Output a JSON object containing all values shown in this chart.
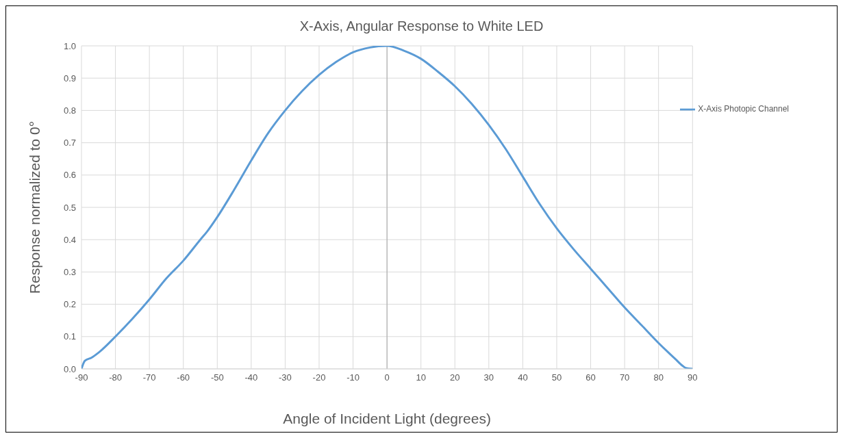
{
  "chart_data": {
    "type": "line",
    "title": "X-Axis, Angular Response to White LED",
    "xlabel": "Angle of Incident Light (degrees)",
    "ylabel": "Response normalized to 0°",
    "x": [
      -90,
      -89,
      -87,
      -85,
      -80,
      -75,
      -70,
      -65,
      -60,
      -55,
      -53,
      -50,
      -45,
      -40,
      -35,
      -30,
      -25,
      -20,
      -15,
      -10,
      -5,
      0,
      5,
      10,
      15,
      20,
      25,
      30,
      35,
      40,
      45,
      50,
      55,
      60,
      65,
      70,
      75,
      80,
      85,
      87,
      88,
      90
    ],
    "series": [
      {
        "name": "X-Axis Photopic Channel",
        "color": "#5b9bd5",
        "values": [
          0,
          0.025,
          0.035,
          0.05,
          0.1,
          0.155,
          0.215,
          0.28,
          0.335,
          0.4,
          0.425,
          0.47,
          0.555,
          0.645,
          0.73,
          0.8,
          0.86,
          0.91,
          0.95,
          0.98,
          0.995,
          1,
          0.985,
          0.96,
          0.92,
          0.875,
          0.82,
          0.755,
          0.68,
          0.595,
          0.51,
          0.435,
          0.37,
          0.31,
          0.25,
          0.19,
          0.135,
          0.08,
          0.03,
          0.01,
          0.003,
          0
        ]
      }
    ],
    "xlim": [
      -90,
      90
    ],
    "xticks": [
      -90,
      -80,
      -70,
      -60,
      -50,
      -40,
      -30,
      -20,
      -10,
      0,
      10,
      20,
      30,
      40,
      50,
      60,
      70,
      80,
      90
    ],
    "ylim": [
      0,
      1
    ],
    "yticks": [
      {
        "value": 0,
        "label": "0.0"
      },
      {
        "value": 0.1,
        "label": "0.1"
      },
      {
        "value": 0.2,
        "label": "0.2"
      },
      {
        "value": 0.3,
        "label": "0.3"
      },
      {
        "value": 0.4,
        "label": "0.4"
      },
      {
        "value": 0.5,
        "label": "0.5"
      },
      {
        "value": 0.6,
        "label": "0.6"
      },
      {
        "value": 0.7,
        "label": "0.7"
      },
      {
        "value": 0.8,
        "label": "0.8"
      },
      {
        "value": 0.9,
        "label": "0.9"
      },
      {
        "value": 1,
        "label": "1.0"
      }
    ],
    "ref_lines": [
      {
        "axis": "x",
        "value": 0,
        "color": "#a6a6a6"
      }
    ],
    "grid": true,
    "legend": "top right",
    "marker": "none",
    "line_style": "solid"
  }
}
